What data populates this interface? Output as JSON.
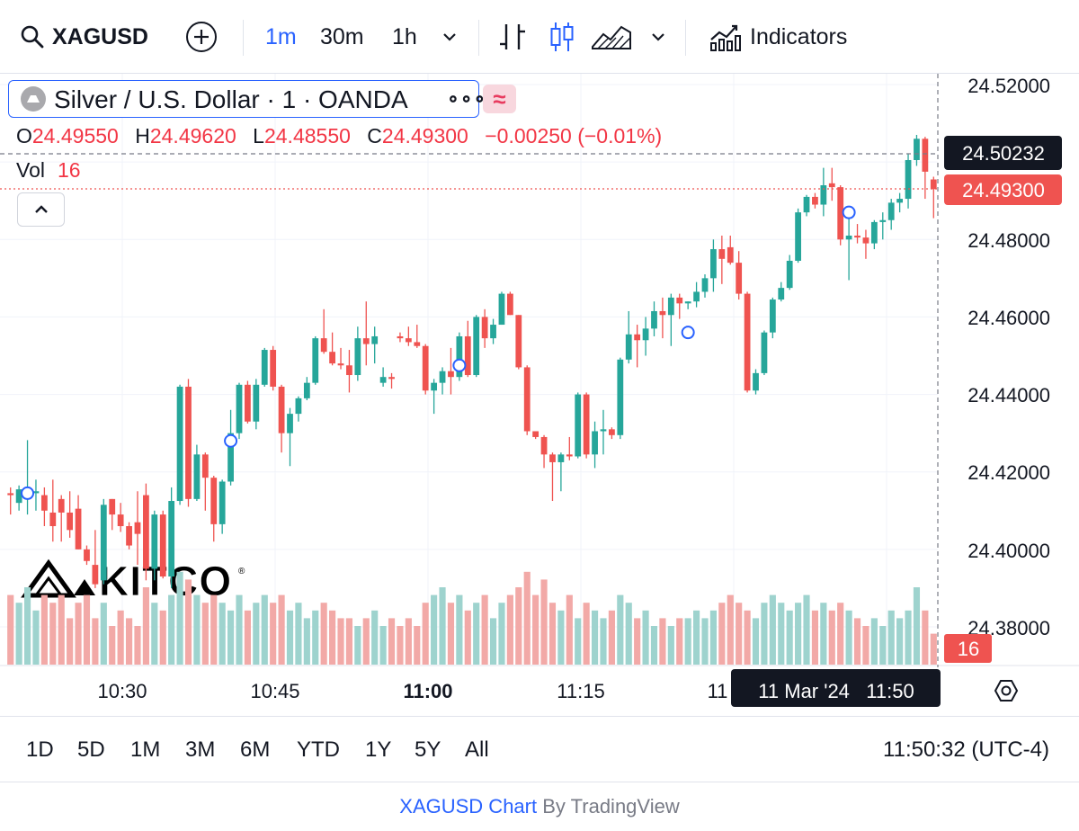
{
  "toolbar": {
    "symbol": "XAGUSD",
    "intervals": [
      "1m",
      "30m",
      "1h"
    ],
    "active_interval": "1m",
    "indicators_label": "Indicators",
    "icons": [
      "search-icon",
      "add-symbol-icon",
      "chevron-down-icon",
      "bar-chart-icon",
      "candles-icon",
      "area-chart-icon",
      "indicators-icon"
    ]
  },
  "legend": {
    "title": "Silver / U.S. Dollar · 1 · OANDA",
    "more": "∘∘∘",
    "compare_glyph": "≈",
    "ohlc": {
      "o_label": "O",
      "o": "24.49550",
      "h_label": "H",
      "h": "24.49620",
      "l_label": "L",
      "l": "24.48550",
      "c_label": "C",
      "c": "24.49300",
      "change": "−0.00250 (−0.01%)"
    },
    "vol_label": "Vol",
    "vol_value": "16"
  },
  "watermark": "KITCO",
  "price_scale": {
    "ticks": [
      "24.52000",
      "24.48000",
      "24.46000",
      "24.44000",
      "24.42000",
      "24.40000",
      "24.38000"
    ],
    "crosshair_price": "24.50232",
    "last_price": "24.49300",
    "volume_label": "16"
  },
  "time_scale": {
    "ticks": [
      "10:30",
      "10:45",
      "11:00",
      "11:15",
      "11"
    ],
    "bold_tick": "11:00",
    "crosshair_time": "11 Mar '24   11:50"
  },
  "bottom": {
    "ranges": [
      "1D",
      "5D",
      "1M",
      "3M",
      "6M",
      "YTD",
      "1Y",
      "5Y",
      "All"
    ],
    "clock": "11:50:32 (UTC-4)"
  },
  "footer": {
    "symbol_link": "XAGUSD Chart",
    "by": "By",
    "brand": "TradingView"
  },
  "colors": {
    "up": "#26a69a",
    "down": "#ef5350",
    "accent": "#2962ff",
    "up_volume": "#9ed3ce",
    "down_volume": "#f2a9a7"
  },
  "chart_data": {
    "type": "candlestick",
    "x_unit": "time (1m bars, 11 Mar 2024)",
    "y_unit": "USD",
    "ylim": [
      24.375,
      24.522
    ],
    "candles": [
      {
        "o": 24.4145,
        "h": 24.416,
        "l": 24.409,
        "c": 24.414,
        "v": 9
      },
      {
        "o": 24.412,
        "h": 24.4165,
        "l": 24.41,
        "c": 24.4155,
        "v": 8
      },
      {
        "o": 24.4135,
        "h": 24.4282,
        "l": 24.409,
        "c": 24.4155,
        "v": 10
      },
      {
        "o": 24.4145,
        "h": 24.418,
        "l": 24.41,
        "c": 24.415,
        "v": 7
      },
      {
        "o": 24.414,
        "h": 24.416,
        "l": 24.406,
        "c": 24.41,
        "v": 9
      },
      {
        "o": 24.4095,
        "h": 24.418,
        "l": 24.402,
        "c": 24.406,
        "v": 8
      },
      {
        "o": 24.413,
        "h": 24.414,
        "l": 24.402,
        "c": 24.4095,
        "v": 9
      },
      {
        "o": 24.4095,
        "h": 24.415,
        "l": 24.403,
        "c": 24.405,
        "v": 6
      },
      {
        "o": 24.4105,
        "h": 24.414,
        "l": 24.4,
        "c": 24.4,
        "v": 8
      },
      {
        "o": 24.4,
        "h": 24.401,
        "l": 24.396,
        "c": 24.397,
        "v": 9
      },
      {
        "o": 24.396,
        "h": 24.405,
        "l": 24.39,
        "c": 24.391,
        "v": 6
      },
      {
        "o": 24.392,
        "h": 24.413,
        "l": 24.391,
        "c": 24.4115,
        "v": 8
      },
      {
        "o": 24.413,
        "h": 24.413,
        "l": 24.405,
        "c": 24.409,
        "v": 5
      },
      {
        "o": 24.409,
        "h": 24.412,
        "l": 24.4045,
        "c": 24.406,
        "v": 7
      },
      {
        "o": 24.406,
        "h": 24.407,
        "l": 24.4,
        "c": 24.401,
        "v": 6
      },
      {
        "o": 24.407,
        "h": 24.415,
        "l": 24.396,
        "c": 24.404,
        "v": 5
      },
      {
        "o": 24.414,
        "h": 24.417,
        "l": 24.392,
        "c": 24.395,
        "v": 10
      },
      {
        "o": 24.395,
        "h": 24.41,
        "l": 24.392,
        "c": 24.409,
        "v": 8
      },
      {
        "o": 24.409,
        "h": 24.41,
        "l": 24.3925,
        "c": 24.393,
        "v": 7
      },
      {
        "o": 24.393,
        "h": 24.416,
        "l": 24.39,
        "c": 24.4125,
        "v": 9
      },
      {
        "o": 24.4125,
        "h": 24.4425,
        "l": 24.4115,
        "c": 24.442,
        "v": 12
      },
      {
        "o": 24.442,
        "h": 24.444,
        "l": 24.411,
        "c": 24.413,
        "v": 11
      },
      {
        "o": 24.413,
        "h": 24.427,
        "l": 24.4125,
        "c": 24.4245,
        "v": 9
      },
      {
        "o": 24.4245,
        "h": 24.425,
        "l": 24.41,
        "c": 24.4185,
        "v": 8
      },
      {
        "o": 24.4185,
        "h": 24.419,
        "l": 24.402,
        "c": 24.4065,
        "v": 9
      },
      {
        "o": 24.4065,
        "h": 24.418,
        "l": 24.404,
        "c": 24.4175,
        "v": 8
      },
      {
        "o": 24.4175,
        "h": 24.436,
        "l": 24.4165,
        "c": 24.43,
        "v": 7
      },
      {
        "o": 24.43,
        "h": 24.443,
        "l": 24.4285,
        "c": 24.4425,
        "v": 9
      },
      {
        "o": 24.4425,
        "h": 24.4435,
        "l": 24.4325,
        "c": 24.433,
        "v": 7
      },
      {
        "o": 24.433,
        "h": 24.444,
        "l": 24.431,
        "c": 24.4425,
        "v": 8
      },
      {
        "o": 24.4425,
        "h": 24.452,
        "l": 24.442,
        "c": 24.4515,
        "v": 9
      },
      {
        "o": 24.4515,
        "h": 24.4525,
        "l": 24.441,
        "c": 24.442,
        "v": 8
      },
      {
        "o": 24.442,
        "h": 24.4425,
        "l": 24.425,
        "c": 24.43,
        "v": 9
      },
      {
        "o": 24.43,
        "h": 24.4365,
        "l": 24.4215,
        "c": 24.435,
        "v": 7
      },
      {
        "o": 24.435,
        "h": 24.4395,
        "l": 24.433,
        "c": 24.439,
        "v": 8
      },
      {
        "o": 24.439,
        "h": 24.4445,
        "l": 24.4385,
        "c": 24.443,
        "v": 6
      },
      {
        "o": 24.443,
        "h": 24.455,
        "l": 24.4425,
        "c": 24.4545,
        "v": 7
      },
      {
        "o": 24.4545,
        "h": 24.462,
        "l": 24.4505,
        "c": 24.451,
        "v": 8
      },
      {
        "o": 24.451,
        "h": 24.456,
        "l": 24.4475,
        "c": 24.448,
        "v": 7
      },
      {
        "o": 24.448,
        "h": 24.452,
        "l": 24.4465,
        "c": 24.4475,
        "v": 6
      },
      {
        "o": 24.4475,
        "h": 24.4515,
        "l": 24.4405,
        "c": 24.445,
        "v": 6
      },
      {
        "o": 24.445,
        "h": 24.4575,
        "l": 24.4435,
        "c": 24.4545,
        "v": 5
      },
      {
        "o": 24.4545,
        "h": 24.464,
        "l": 24.4475,
        "c": 24.453,
        "v": 6
      },
      {
        "o": 24.453,
        "h": 24.4575,
        "l": 24.448,
        "c": 24.455,
        "v": 7
      },
      {
        "o": 24.443,
        "h": 24.447,
        "l": 24.442,
        "c": 24.4445,
        "v": 5
      },
      {
        "o": 24.4445,
        "h": 24.4455,
        "l": 24.4415,
        "c": 24.444,
        "v": 6
      },
      {
        "o": 24.455,
        "h": 24.456,
        "l": 24.4535,
        "c": 24.4545,
        "v": 5
      },
      {
        "o": 24.4545,
        "h": 24.4575,
        "l": 24.4525,
        "c": 24.4535,
        "v": 6
      },
      {
        "o": 24.4535,
        "h": 24.458,
        "l": 24.452,
        "c": 24.4525,
        "v": 5
      },
      {
        "o": 24.4525,
        "h": 24.453,
        "l": 24.44,
        "c": 24.441,
        "v": 8
      },
      {
        "o": 24.441,
        "h": 24.444,
        "l": 24.435,
        "c": 24.443,
        "v": 9
      },
      {
        "o": 24.443,
        "h": 24.447,
        "l": 24.44,
        "c": 24.446,
        "v": 10
      },
      {
        "o": 24.446,
        "h": 24.452,
        "l": 24.44,
        "c": 24.4445,
        "v": 8
      },
      {
        "o": 24.4445,
        "h": 24.456,
        "l": 24.4435,
        "c": 24.455,
        "v": 9
      },
      {
        "o": 24.455,
        "h": 24.459,
        "l": 24.4445,
        "c": 24.445,
        "v": 7
      },
      {
        "o": 24.445,
        "h": 24.4605,
        "l": 24.4445,
        "c": 24.46,
        "v": 8
      },
      {
        "o": 24.46,
        "h": 24.462,
        "l": 24.452,
        "c": 24.4545,
        "v": 9
      },
      {
        "o": 24.4545,
        "h": 24.4595,
        "l": 24.453,
        "c": 24.458,
        "v": 6
      },
      {
        "o": 24.458,
        "h": 24.4665,
        "l": 24.458,
        "c": 24.466,
        "v": 8
      },
      {
        "o": 24.466,
        "h": 24.4665,
        "l": 24.4605,
        "c": 24.4605,
        "v": 9
      },
      {
        "o": 24.4605,
        "h": 24.4605,
        "l": 24.4465,
        "c": 24.447,
        "v": 10
      },
      {
        "o": 24.447,
        "h": 24.4475,
        "l": 24.4295,
        "c": 24.4305,
        "v": 12
      },
      {
        "o": 24.4305,
        "h": 24.43,
        "l": 24.4285,
        "c": 24.429,
        "v": 9
      },
      {
        "o": 24.429,
        "h": 24.4295,
        "l": 24.421,
        "c": 24.4245,
        "v": 11
      },
      {
        "o": 24.4245,
        "h": 24.425,
        "l": 24.4125,
        "c": 24.4225,
        "v": 8
      },
      {
        "o": 24.4225,
        "h": 24.425,
        "l": 24.415,
        "c": 24.4245,
        "v": 7
      },
      {
        "o": 24.4245,
        "h": 24.429,
        "l": 24.423,
        "c": 24.424,
        "v": 9
      },
      {
        "o": 24.424,
        "h": 24.4405,
        "l": 24.4235,
        "c": 24.44,
        "v": 6
      },
      {
        "o": 24.44,
        "h": 24.4405,
        "l": 24.4235,
        "c": 24.4245,
        "v": 8
      },
      {
        "o": 24.4245,
        "h": 24.433,
        "l": 24.421,
        "c": 24.4305,
        "v": 7
      },
      {
        "o": 24.4305,
        "h": 24.436,
        "l": 24.4245,
        "c": 24.431,
        "v": 6
      },
      {
        "o": 24.431,
        "h": 24.4315,
        "l": 24.4285,
        "c": 24.4295,
        "v": 7
      },
      {
        "o": 24.4295,
        "h": 24.4495,
        "l": 24.4285,
        "c": 24.449,
        "v": 9
      },
      {
        "o": 24.449,
        "h": 24.4615,
        "l": 24.448,
        "c": 24.4555,
        "v": 8
      },
      {
        "o": 24.4555,
        "h": 24.458,
        "l": 24.447,
        "c": 24.454,
        "v": 6
      },
      {
        "o": 24.454,
        "h": 24.46,
        "l": 24.45,
        "c": 24.457,
        "v": 7
      },
      {
        "o": 24.457,
        "h": 24.464,
        "l": 24.455,
        "c": 24.4615,
        "v": 5
      },
      {
        "o": 24.4615,
        "h": 24.465,
        "l": 24.4545,
        "c": 24.4605,
        "v": 6
      },
      {
        "o": 24.4605,
        "h": 24.466,
        "l": 24.4525,
        "c": 24.465,
        "v": 5
      },
      {
        "o": 24.465,
        "h": 24.466,
        "l": 24.4595,
        "c": 24.4635,
        "v": 6
      },
      {
        "o": 24.4635,
        "h": 24.464,
        "l": 24.462,
        "c": 24.464,
        "v": 6
      },
      {
        "o": 24.464,
        "h": 24.469,
        "l": 24.4625,
        "c": 24.4665,
        "v": 7
      },
      {
        "o": 24.4665,
        "h": 24.471,
        "l": 24.465,
        "c": 24.47,
        "v": 6
      },
      {
        "o": 24.47,
        "h": 24.48,
        "l": 24.4665,
        "c": 24.4775,
        "v": 7
      },
      {
        "o": 24.4775,
        "h": 24.481,
        "l": 24.4685,
        "c": 24.475,
        "v": 8
      },
      {
        "o": 24.478,
        "h": 24.481,
        "l": 24.4735,
        "c": 24.474,
        "v": 9
      },
      {
        "o": 24.474,
        "h": 24.477,
        "l": 24.4645,
        "c": 24.466,
        "v": 8
      },
      {
        "o": 24.466,
        "h": 24.4665,
        "l": 24.4405,
        "c": 24.441,
        "v": 7
      },
      {
        "o": 24.441,
        "h": 24.4465,
        "l": 24.44,
        "c": 24.4455,
        "v": 6
      },
      {
        "o": 24.4455,
        "h": 24.4565,
        "l": 24.445,
        "c": 24.456,
        "v": 8
      },
      {
        "o": 24.456,
        "h": 24.465,
        "l": 24.4545,
        "c": 24.4645,
        "v": 9
      },
      {
        "o": 24.4645,
        "h": 24.469,
        "l": 24.464,
        "c": 24.4675,
        "v": 8
      },
      {
        "o": 24.4675,
        "h": 24.476,
        "l": 24.467,
        "c": 24.4745,
        "v": 7
      },
      {
        "o": 24.4745,
        "h": 24.488,
        "l": 24.474,
        "c": 24.487,
        "v": 8
      },
      {
        "o": 24.487,
        "h": 24.4915,
        "l": 24.486,
        "c": 24.491,
        "v": 9
      },
      {
        "o": 24.491,
        "h": 24.492,
        "l": 24.488,
        "c": 24.489,
        "v": 7
      },
      {
        "o": 24.489,
        "h": 24.4985,
        "l": 24.486,
        "c": 24.494,
        "v": 8
      },
      {
        "o": 24.4945,
        "h": 24.4985,
        "l": 24.49,
        "c": 24.4935,
        "v": 7
      },
      {
        "o": 24.4935,
        "h": 24.494,
        "l": 24.4785,
        "c": 24.48,
        "v": 8
      },
      {
        "o": 24.48,
        "h": 24.488,
        "l": 24.4695,
        "c": 24.481,
        "v": 7
      },
      {
        "o": 24.481,
        "h": 24.484,
        "l": 24.479,
        "c": 24.4805,
        "v": 6
      },
      {
        "o": 24.4805,
        "h": 24.4825,
        "l": 24.475,
        "c": 24.479,
        "v": 5
      },
      {
        "o": 24.479,
        "h": 24.485,
        "l": 24.4775,
        "c": 24.4845,
        "v": 6
      },
      {
        "o": 24.4845,
        "h": 24.487,
        "l": 24.48,
        "c": 24.485,
        "v": 5
      },
      {
        "o": 24.485,
        "h": 24.4905,
        "l": 24.4825,
        "c": 24.4895,
        "v": 7
      },
      {
        "o": 24.4895,
        "h": 24.492,
        "l": 24.487,
        "c": 24.4905,
        "v": 6
      },
      {
        "o": 24.4905,
        "h": 24.502,
        "l": 24.488,
        "c": 24.5005,
        "v": 7
      },
      {
        "o": 24.5005,
        "h": 24.507,
        "l": 24.499,
        "c": 24.506,
        "v": 10
      },
      {
        "o": 24.506,
        "h": 24.5065,
        "l": 24.4905,
        "c": 24.4975,
        "v": 7
      },
      {
        "o": 24.4955,
        "h": 24.4962,
        "l": 24.4855,
        "c": 24.493,
        "v": 4
      }
    ]
  }
}
